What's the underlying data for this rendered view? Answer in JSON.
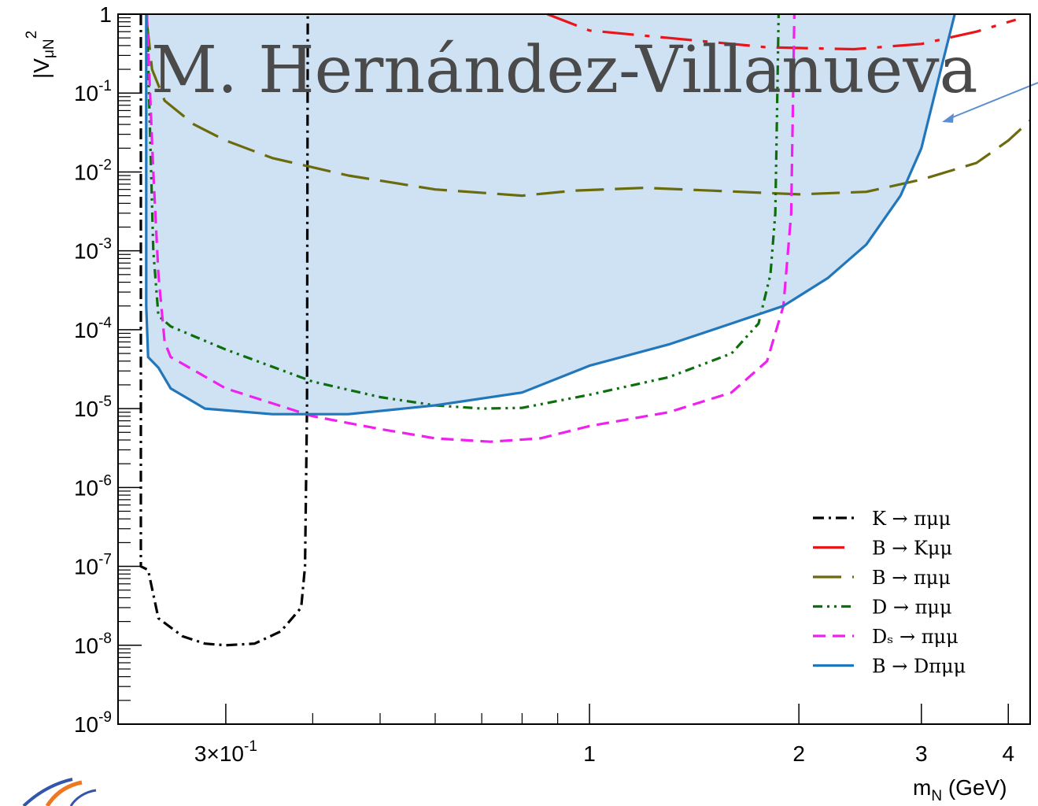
{
  "chart_data": {
    "type": "line",
    "title": "",
    "xlabel": "m_N (GeV)",
    "ylabel": "|V_μN|²",
    "xscale": "log",
    "yscale": "log",
    "xlim": [
      0.21,
      4.3
    ],
    "ylim": [
      1e-09,
      1
    ],
    "x_tick_labels": [
      {
        "value": 0.3,
        "label": "3×10⁻¹"
      },
      {
        "value": 1,
        "label": "1"
      },
      {
        "value": 2,
        "label": "2"
      },
      {
        "value": 3,
        "label": "3"
      },
      {
        "value": 4,
        "label": "4"
      }
    ],
    "y_tick_labels": [
      {
        "value": 1,
        "label": "1"
      },
      {
        "value": 0.1,
        "label": "10⁻¹"
      },
      {
        "value": 0.01,
        "label": "10⁻²"
      },
      {
        "value": 0.001,
        "label": "10⁻³"
      },
      {
        "value": 0.0001,
        "label": "10⁻⁴"
      },
      {
        "value": 1e-05,
        "label": "10⁻⁵"
      },
      {
        "value": 1e-06,
        "label": "10⁻⁶"
      },
      {
        "value": 1e-07,
        "label": "10⁻⁷"
      },
      {
        "value": 1e-08,
        "label": "10⁻⁸"
      },
      {
        "value": 1e-09,
        "label": "10⁻⁹"
      }
    ],
    "grid": false,
    "legend_position": "bottom-right",
    "series": [
      {
        "name": "K → πμμ",
        "color": "#000000",
        "dash": "dash-dot",
        "points": [
          [
            0.2265,
            1
          ],
          [
            0.2265,
            1e-07
          ],
          [
            0.232,
            9e-08
          ],
          [
            0.24,
            2.2e-08
          ],
          [
            0.26,
            1.3e-08
          ],
          [
            0.28,
            1.05e-08
          ],
          [
            0.3,
            1e-08
          ],
          [
            0.33,
            1.05e-08
          ],
          [
            0.36,
            1.5e-08
          ],
          [
            0.385,
            3e-08
          ],
          [
            0.39,
            1e-07
          ],
          [
            0.3925,
            1e-05
          ],
          [
            0.3935,
            1
          ]
        ]
      },
      {
        "name": "B → Kμμ",
        "color": "#e8161b",
        "dash": "long-dash-dot",
        "points": [
          [
            0.87,
            1
          ],
          [
            1.0,
            0.62
          ],
          [
            1.3,
            0.5
          ],
          [
            1.8,
            0.38
          ],
          [
            2.4,
            0.36
          ],
          [
            3.0,
            0.42
          ],
          [
            3.6,
            0.6
          ],
          [
            4.1,
            0.85
          ]
        ]
      },
      {
        "name": "B → πμμ",
        "color": "#6b6b0e",
        "dash": "long-dash",
        "points": [
          [
            0.231,
            0.8
          ],
          [
            0.235,
            0.2
          ],
          [
            0.245,
            0.08
          ],
          [
            0.27,
            0.04
          ],
          [
            0.3,
            0.025
          ],
          [
            0.35,
            0.015
          ],
          [
            0.45,
            0.009
          ],
          [
            0.6,
            0.006
          ],
          [
            0.8,
            0.005
          ],
          [
            0.95,
            0.0058
          ],
          [
            1.2,
            0.0063
          ],
          [
            1.5,
            0.0058
          ],
          [
            2.0,
            0.0052
          ],
          [
            2.5,
            0.0056
          ],
          [
            3.0,
            0.008
          ],
          [
            3.6,
            0.013
          ],
          [
            4.0,
            0.025
          ],
          [
            4.3,
            0.045
          ]
        ]
      },
      {
        "name": "D → πμμ",
        "color": "#0e6e0e",
        "dash": "dash-dot-dot",
        "points": [
          [
            0.231,
            1
          ],
          [
            0.236,
            0.001
          ],
          [
            0.24,
            0.00015
          ],
          [
            0.25,
            0.00011
          ],
          [
            0.3,
            5.6e-05
          ],
          [
            0.4,
            2.2e-05
          ],
          [
            0.5,
            1.4e-05
          ],
          [
            0.6,
            1.1e-05
          ],
          [
            0.7,
            1e-05
          ],
          [
            0.8,
            1.02e-05
          ],
          [
            1.0,
            1.5e-05
          ],
          [
            1.3,
            2.5e-05
          ],
          [
            1.6,
            5e-05
          ],
          [
            1.75,
            0.00012
          ],
          [
            1.82,
            0.0005
          ],
          [
            1.85,
            0.003
          ],
          [
            1.86,
            0.05
          ],
          [
            1.87,
            1
          ]
        ]
      },
      {
        "name": "Dₛ → πμμ",
        "color": "#ee22ee",
        "dash": "dash",
        "points": [
          [
            0.231,
            1
          ],
          [
            0.236,
            0.01
          ],
          [
            0.24,
            0.0005
          ],
          [
            0.245,
            7e-05
          ],
          [
            0.25,
            4.5e-05
          ],
          [
            0.3,
            1.8e-05
          ],
          [
            0.4,
            8e-06
          ],
          [
            0.5,
            5.5e-06
          ],
          [
            0.6,
            4.2e-06
          ],
          [
            0.72,
            3.8e-06
          ],
          [
            0.85,
            4.2e-06
          ],
          [
            1.0,
            6e-06
          ],
          [
            1.3,
            9e-06
          ],
          [
            1.6,
            1.6e-05
          ],
          [
            1.8,
            4e-05
          ],
          [
            1.9,
            0.0002
          ],
          [
            1.95,
            0.003
          ],
          [
            1.97,
            1
          ]
        ]
      },
      {
        "name": "B → Dπμμ",
        "color": "#2277bb",
        "dash": "solid",
        "fill": "#cfe2f3",
        "points": [
          [
            0.2305,
            1
          ],
          [
            0.2305,
            0.0002
          ],
          [
            0.232,
            4.5e-05
          ],
          [
            0.24,
            3.3e-05
          ],
          [
            0.25,
            1.8e-05
          ],
          [
            0.28,
            1e-05
          ],
          [
            0.35,
            8.5e-06
          ],
          [
            0.45,
            8.5e-06
          ],
          [
            0.6,
            1.1e-05
          ],
          [
            0.8,
            1.6e-05
          ],
          [
            1.0,
            3.5e-05
          ],
          [
            1.3,
            6.5e-05
          ],
          [
            1.6,
            0.00012
          ],
          [
            1.9,
            0.0002
          ],
          [
            2.2,
            0.00045
          ],
          [
            2.5,
            0.0012
          ],
          [
            2.8,
            0.005
          ],
          [
            3.0,
            0.02
          ],
          [
            3.2,
            0.2
          ],
          [
            3.35,
            1
          ]
        ]
      }
    ],
    "watermark_text": "M. Hernández-Villanueva"
  }
}
